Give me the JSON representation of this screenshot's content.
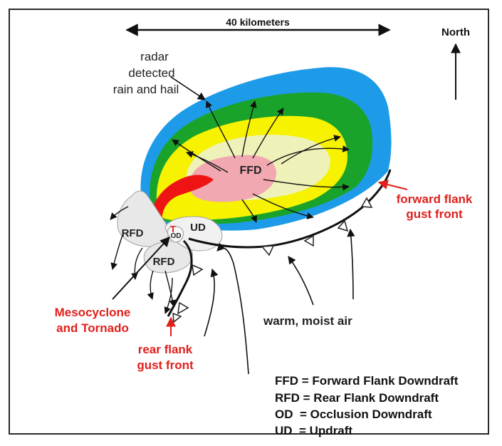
{
  "scale": "40 kilometers",
  "north": "North",
  "radar_label": [
    "radar",
    "detected",
    "rain and hail"
  ],
  "regions": {
    "ffd": "FFD",
    "rfd_upper": "RFD",
    "rfd_lower": "RFD",
    "ud": "UD",
    "od": "OD",
    "tornado_marker": "T"
  },
  "labels": {
    "forward_flank": [
      "forward flank",
      "gust front"
    ],
    "rear_flank": [
      "rear flank",
      "gust front"
    ],
    "mesocyclone": [
      "Mesocyclone",
      "and Tornado"
    ],
    "warm_air": "warm, moist air"
  },
  "legend": [
    "FFD = Forward Flank Downdraft",
    "RFD = Rear Flank Downdraft",
    "OD  = Occlusion Downdraft",
    "UD  = Updraft"
  ],
  "colors": {
    "blue": "#1e9be8",
    "green": "#1aa32a",
    "yellow": "#f6f200",
    "pale": "#eef2b8",
    "pink": "#f2a8b0",
    "red": "#ee1414",
    "gray": "#e8e8e8",
    "label_red": "#e0201c"
  }
}
